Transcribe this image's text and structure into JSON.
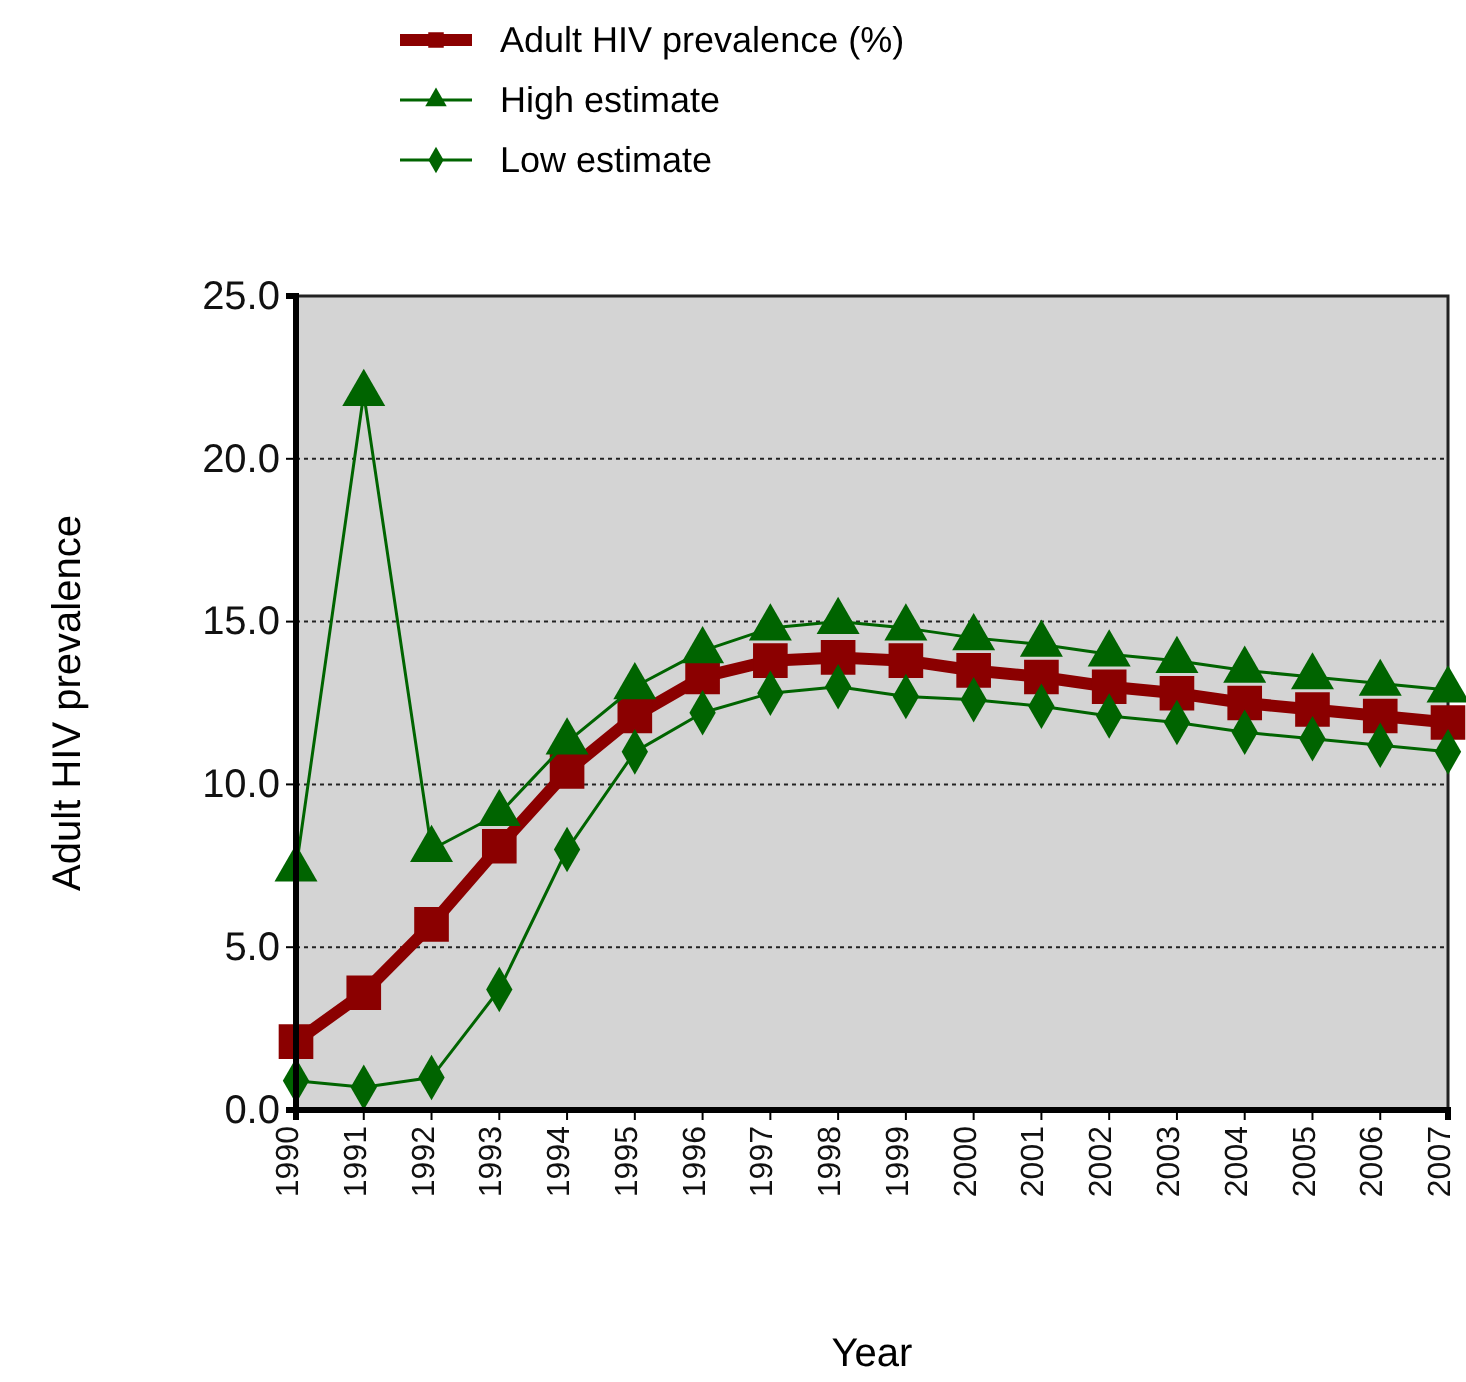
{
  "chart_data": {
    "type": "line",
    "xlabel": "Year",
    "ylabel": "Adult HIV prevalence",
    "x": [
      1990,
      1991,
      1992,
      1993,
      1994,
      1995,
      1996,
      1997,
      1998,
      1999,
      2000,
      2001,
      2002,
      2003,
      2004,
      2005,
      2006,
      2007
    ],
    "xlim": [
      1990,
      2007
    ],
    "xticks": [
      1990,
      1991,
      1992,
      1993,
      1994,
      1995,
      1996,
      1997,
      1998,
      1999,
      2000,
      2001,
      2002,
      2003,
      2004,
      2005,
      2006,
      2007
    ],
    "ylim": [
      0,
      25
    ],
    "yticks": [
      {
        "value": 0,
        "label": "0.0"
      },
      {
        "value": 5,
        "label": "5.0"
      },
      {
        "value": 10,
        "label": "10.0"
      },
      {
        "value": 15,
        "label": "15.0"
      },
      {
        "value": 20,
        "label": "20.0"
      },
      {
        "value": 25,
        "label": "25.0"
      }
    ],
    "grid": "y",
    "legend": "top",
    "series": [
      {
        "name": "Adult HIV prevalence (%)",
        "color": "#8b0000",
        "marker": "square",
        "values": [
          2.1,
          3.6,
          5.7,
          8.1,
          10.4,
          12.1,
          13.3,
          13.8,
          13.9,
          13.8,
          13.5,
          13.3,
          13.0,
          12.8,
          12.5,
          12.3,
          12.1,
          11.9
        ]
      },
      {
        "name": "High estimate",
        "color": "#006400",
        "marker": "triangle",
        "values": [
          7.4,
          22.0,
          8.0,
          9.1,
          11.3,
          13.0,
          14.1,
          14.8,
          15.0,
          14.8,
          14.5,
          14.3,
          14.0,
          13.8,
          13.5,
          13.3,
          13.1,
          12.9
        ]
      },
      {
        "name": "Low estimate",
        "color": "#006400",
        "marker": "diamond",
        "values": [
          0.9,
          0.7,
          1.0,
          3.7,
          8.0,
          11.0,
          12.2,
          12.8,
          13.0,
          12.7,
          12.6,
          12.4,
          12.1,
          11.9,
          11.6,
          11.4,
          11.2,
          11.0
        ]
      }
    ]
  }
}
